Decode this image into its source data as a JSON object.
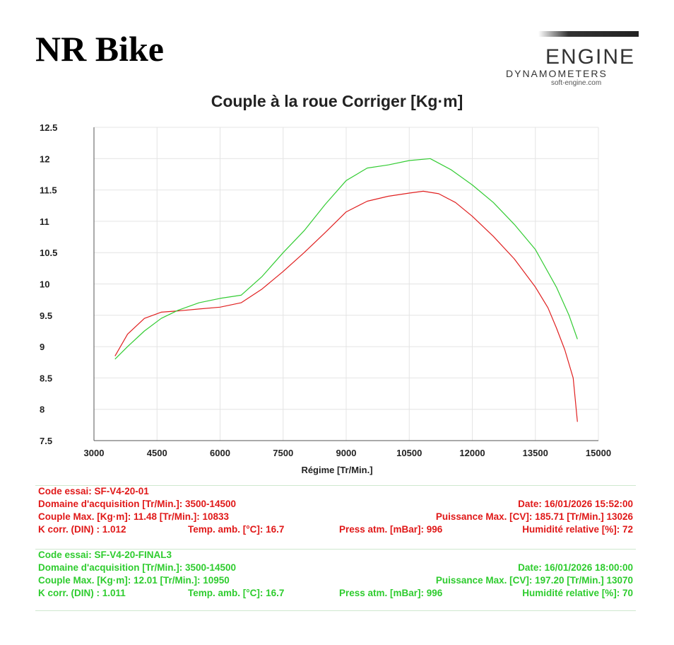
{
  "header": {
    "brand": "NR Bike",
    "logo_word": "ENGINE",
    "logo_sub": "DYNAMOMETERS",
    "logo_url": "soft-engine.com"
  },
  "chart_data": {
    "type": "line",
    "title": "Couple à la roue Corriger [Kg·m]",
    "xlabel": "Régime [Tr/Min.]",
    "ylabel": "",
    "xlim": [
      3000,
      15000
    ],
    "ylim": [
      7.5,
      12.5
    ],
    "x_ticks": [
      "3000",
      "4500",
      "6000",
      "7500",
      "9000",
      "10500",
      "12000",
      "13500",
      "15000"
    ],
    "y_ticks": [
      "7.5",
      "8",
      "8.5",
      "9",
      "9.5",
      "10",
      "10.5",
      "11",
      "11.5",
      "12",
      "12.5"
    ],
    "grid": true,
    "series": [
      {
        "color": "#e02020",
        "x": [
          3500,
          3800,
          4200,
          4600,
          5000,
          5500,
          6000,
          6500,
          7000,
          7500,
          8000,
          8500,
          9000,
          9500,
          10000,
          10500,
          10833,
          11200,
          11600,
          12000,
          12500,
          13000,
          13500,
          13800,
          14000,
          14200,
          14400,
          14500
        ],
        "y": [
          8.85,
          9.2,
          9.45,
          9.55,
          9.57,
          9.6,
          9.63,
          9.7,
          9.92,
          10.2,
          10.5,
          10.82,
          11.15,
          11.32,
          11.4,
          11.45,
          11.48,
          11.44,
          11.3,
          11.08,
          10.76,
          10.4,
          9.95,
          9.62,
          9.3,
          8.95,
          8.5,
          7.8
        ]
      },
      {
        "color": "#33cc33",
        "x": [
          3500,
          3800,
          4200,
          4600,
          5000,
          5500,
          6000,
          6500,
          7000,
          7500,
          8000,
          8500,
          9000,
          9500,
          10000,
          10500,
          11000,
          11500,
          12000,
          12500,
          13000,
          13500,
          14000,
          14300,
          14500
        ],
        "y": [
          8.8,
          9.0,
          9.25,
          9.45,
          9.58,
          9.7,
          9.77,
          9.82,
          10.12,
          10.5,
          10.85,
          11.27,
          11.65,
          11.85,
          11.9,
          11.97,
          12.0,
          11.82,
          11.58,
          11.3,
          10.95,
          10.55,
          9.95,
          9.5,
          9.12
        ]
      }
    ]
  },
  "runs": {
    "red": {
      "code": "Code essai: SF-V4-20-01",
      "domain": "Domaine d'acquisition [Tr/Min.]: 3500-14500",
      "date": "Date: 16/01/2026   15:52:00",
      "torque": "Couple Max. [Kg·m]: 11.48   [Tr/Min.]: 10833",
      "power": "Puissance Max. [CV]: 185.71   [Tr/Min.]  13026",
      "kcorr": "K corr. (DIN) : 1.012",
      "temp": "Temp. amb. [°C]: 16.7",
      "press": "Press atm. [mBar]: 996",
      "humid": "Humidité relative [%]: 72"
    },
    "green": {
      "code": "Code essai: SF-V4-20-FINAL3",
      "domain": "Domaine d'acquisition [Tr/Min.]: 3500-14500",
      "date": "Date: 16/01/2026   18:00:00",
      "torque": "Couple Max. [Kg·m]: 12.01   [Tr/Min.]: 10950",
      "power": "Puissance Max. [CV]: 197.20   [Tr/Min.]  13070",
      "kcorr": "K corr. (DIN) : 1.011",
      "temp": "Temp. amb. [°C]: 16.7",
      "press": "Press atm. [mBar]: 996",
      "humid": "Humidité relative [%]: 70"
    }
  }
}
